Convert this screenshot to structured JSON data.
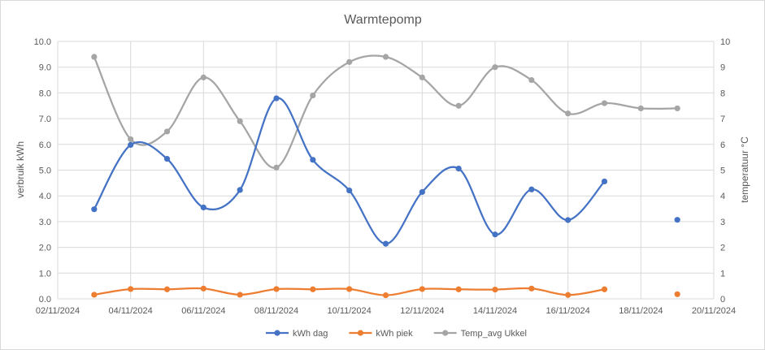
{
  "chart_data": {
    "type": "line",
    "title": "Warmtepomp",
    "x": [
      "03/11/2024",
      "04/11/2024",
      "05/11/2024",
      "06/11/2024",
      "07/11/2024",
      "08/11/2024",
      "09/11/2024",
      "10/11/2024",
      "11/11/2024",
      "12/11/2024",
      "13/11/2024",
      "14/11/2024",
      "15/11/2024",
      "16/11/2024",
      "17/11/2024",
      "18/11/2024",
      "19/11/2024"
    ],
    "x_ticks": [
      "02/11/2024",
      "04/11/2024",
      "06/11/2024",
      "08/11/2024",
      "10/11/2024",
      "12/11/2024",
      "14/11/2024",
      "16/11/2024",
      "18/11/2024",
      "20/11/2024"
    ],
    "xlim": [
      "02/11/2024",
      "20/11/2024"
    ],
    "ylabel": "verbruik kWh",
    "ylim": [
      0,
      10
    ],
    "y_ticks": [
      "0.0",
      "1.0",
      "2.0",
      "3.0",
      "4.0",
      "5.0",
      "6.0",
      "7.0",
      "8.0",
      "9.0",
      "10.0"
    ],
    "y2label": "temperatuur °C",
    "y2lim": [
      0,
      10
    ],
    "y2_ticks": [
      "0",
      "1",
      "2",
      "3",
      "4",
      "5",
      "6",
      "7",
      "8",
      "9",
      "10"
    ],
    "grid": true,
    "legend_position": "bottom",
    "smooth": true,
    "series": [
      {
        "name": "kWh dag",
        "axis": "left",
        "color": "#4472c4",
        "values": [
          3.48,
          5.98,
          5.44,
          3.55,
          4.23,
          7.79,
          5.4,
          4.21,
          2.14,
          4.15,
          5.06,
          2.5,
          4.25,
          3.06,
          4.56,
          null,
          3.07
        ]
      },
      {
        "name": "kWh piek",
        "axis": "left",
        "color": "#ed7d31",
        "values": [
          0.16,
          0.38,
          0.37,
          0.4,
          0.16,
          0.38,
          0.37,
          0.38,
          0.14,
          0.38,
          0.37,
          0.36,
          0.4,
          0.15,
          0.37,
          null,
          0.18
        ]
      },
      {
        "name": "Temp_avg Ukkel",
        "axis": "right",
        "color": "#a5a5a5",
        "values": [
          9.4,
          6.2,
          6.5,
          8.6,
          6.9,
          5.1,
          7.9,
          9.2,
          9.4,
          8.6,
          7.5,
          9.0,
          8.5,
          7.2,
          7.6,
          7.4,
          7.4
        ]
      }
    ]
  }
}
